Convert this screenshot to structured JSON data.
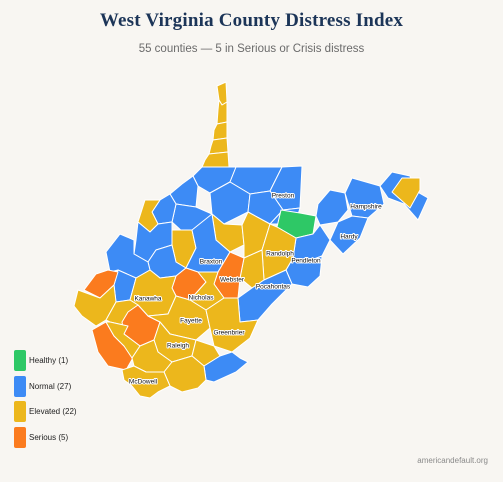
{
  "header": {
    "title": "West Virginia County Distress Index",
    "subtitle": "55 counties — 5 in Serious or Crisis distress"
  },
  "map": {
    "categories": {
      "healthy": "#2ec866",
      "normal": "#3d8bf5",
      "elevated": "#ecb71c",
      "serious": "#fb7b1e"
    },
    "labels": [
      "Preston",
      "Hampshire",
      "Hardy",
      "Randolph",
      "Pendleton",
      "Braxton",
      "Webster",
      "Pocahontas",
      "Kanawha",
      "Nicholas",
      "Fayette",
      "Greenbrier",
      "Raleigh",
      "McDowell"
    ]
  },
  "legend": [
    {
      "label": "Healthy (1)",
      "color": "#2ec866"
    },
    {
      "label": "Normal (27)",
      "color": "#3d8bf5"
    },
    {
      "label": "Elevated (22)",
      "color": "#ecb71c"
    },
    {
      "label": "Serious (5)",
      "color": "#fb7b1e"
    }
  ],
  "footer": {
    "attribution": "americandefault.org"
  }
}
